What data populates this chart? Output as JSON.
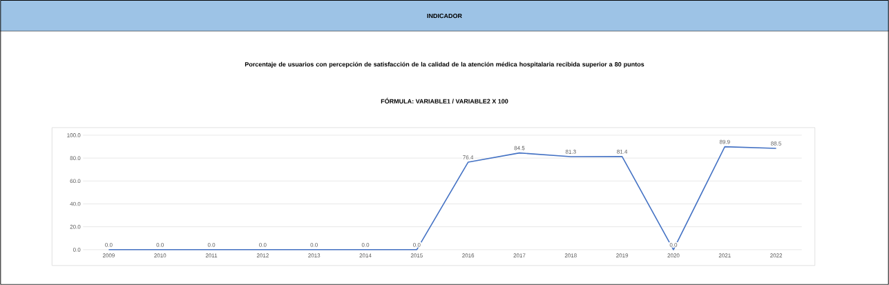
{
  "chart_data": {
    "type": "line",
    "title": "INDICADOR",
    "subtitle": "Porcentaje de usuarios con percepción de satisfacción de la calidad de la atención médica hospitalaria recibida superior a 80 puntos",
    "annotations": [
      "FÓRMULA: VARIABLE1 / VARIABLE2 X 100"
    ],
    "categories": [
      "2009",
      "2010",
      "2011",
      "2012",
      "2013",
      "2014",
      "2015",
      "2016",
      "2017",
      "2018",
      "2019",
      "2020",
      "2021",
      "2022"
    ],
    "values": [
      0,
      0,
      0,
      0,
      0,
      0,
      0,
      76.4,
      84.5,
      81.3,
      81.4,
      0,
      89.9,
      88.5
    ],
    "value_labels": [
      "0.0",
      "0.0",
      "0.0",
      "0.0",
      "0.0",
      "0.0",
      "0.0",
      "76.4",
      "84.5",
      "81.3",
      "81.4",
      "0.0",
      "89.9",
      "88.5"
    ],
    "color": "#4472c4",
    "ylim": [
      0,
      100
    ],
    "yticks": [
      {
        "value": 0,
        "label": "0.0"
      },
      {
        "value": 20,
        "label": "20.0"
      },
      {
        "value": 40,
        "label": "40.0"
      },
      {
        "value": 60,
        "label": "60.0"
      },
      {
        "value": 80,
        "label": "80.0"
      },
      {
        "value": 100,
        "label": "100.0"
      }
    ],
    "grid": "y",
    "marker": "none",
    "line_style": "solid"
  }
}
